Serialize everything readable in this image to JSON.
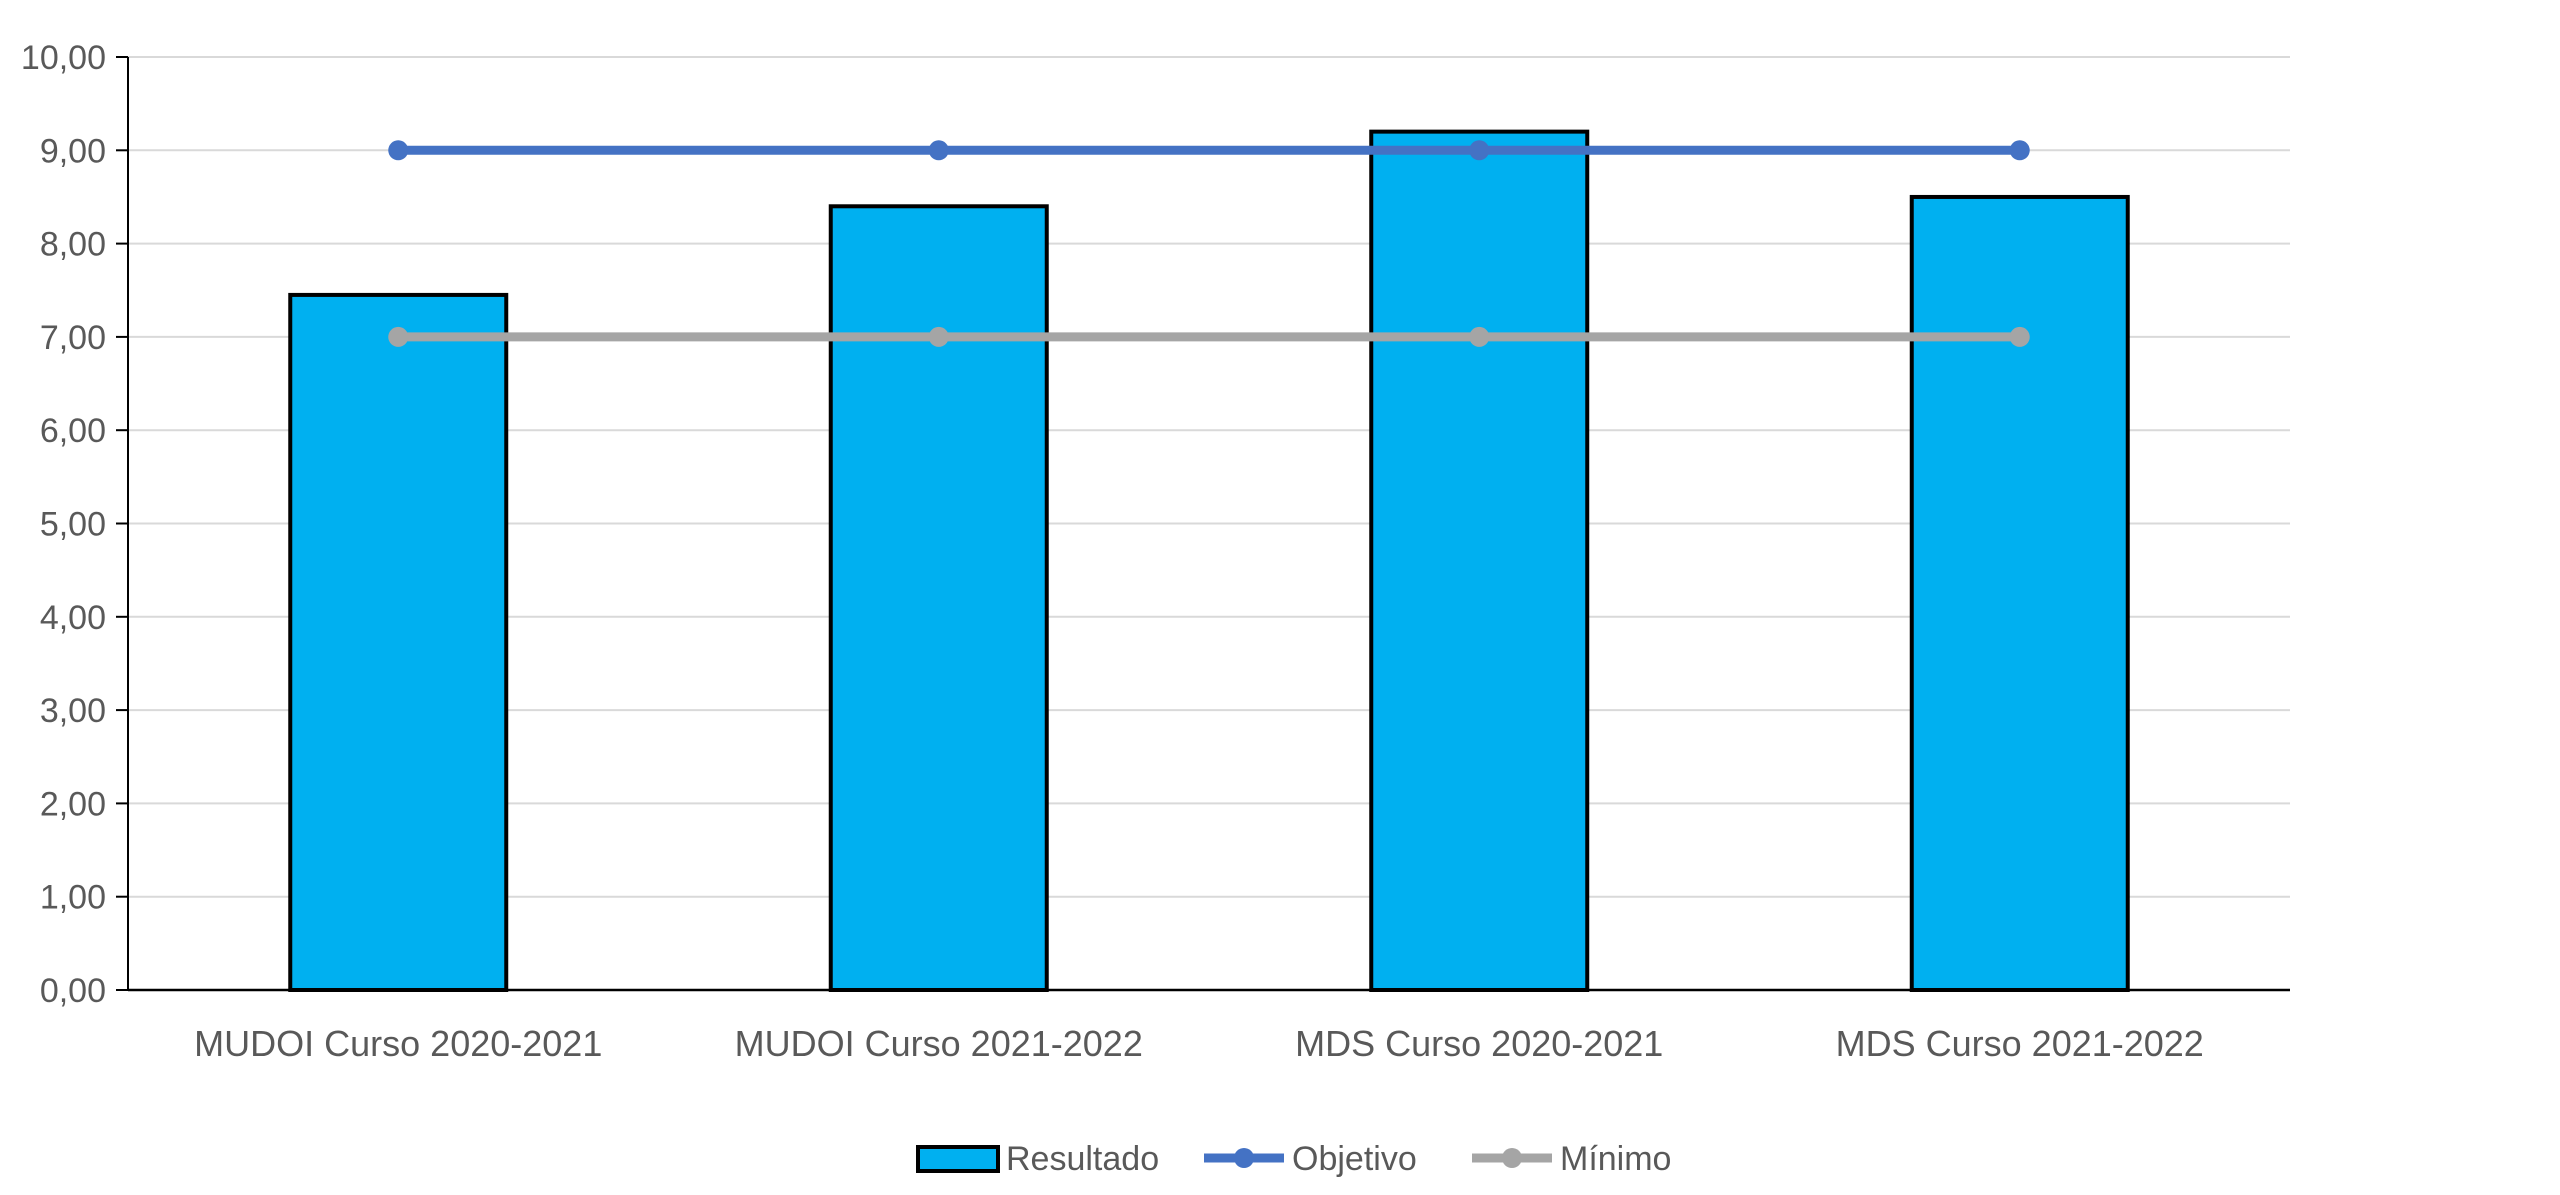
{
  "chart_data": {
    "type": "bar",
    "categories": [
      "MUDOI Curso 2020-2021",
      "MUDOI Curso 2021-2022",
      "MDS Curso 2020-2021",
      "MDS Curso 2021-2022"
    ],
    "series": [
      {
        "name": "Resultado",
        "kind": "bar",
        "color": "#00B0F0",
        "values": [
          7.45,
          8.4,
          9.2,
          8.5
        ]
      },
      {
        "name": "Objetivo",
        "kind": "line",
        "color": "#4472C4",
        "values": [
          9,
          9,
          9,
          9
        ]
      },
      {
        "name": "Mínimo",
        "kind": "line",
        "color": "#A5A5A5",
        "values": [
          7,
          7,
          7,
          7
        ]
      }
    ],
    "ylim": [
      0,
      10
    ],
    "yticks": [
      "0,00",
      "1,00",
      "2,00",
      "3,00",
      "4,00",
      "5,00",
      "6,00",
      "7,00",
      "8,00",
      "9,00",
      "10,00"
    ],
    "grid": true,
    "legend": "bottom"
  }
}
